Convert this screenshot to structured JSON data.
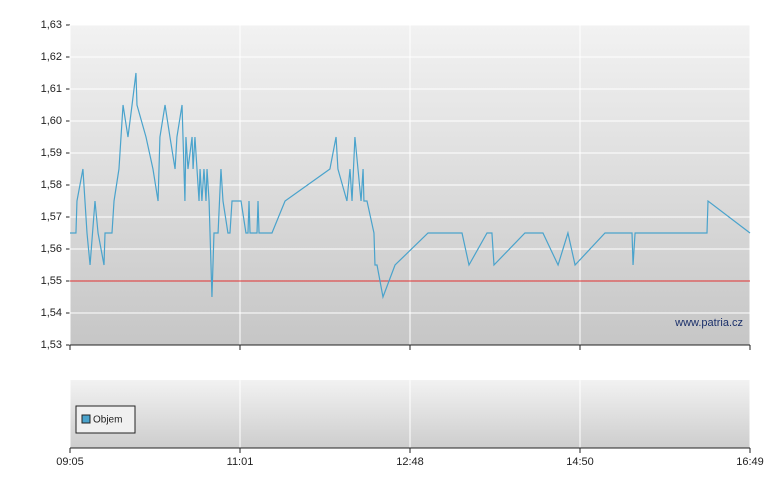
{
  "chart_data": {
    "type": "line",
    "x": [
      0,
      0.035,
      0.041,
      0.076,
      0.1,
      0.118,
      0.147,
      0.165,
      0.2,
      0.206,
      0.247,
      0.259,
      0.288,
      0.312,
      0.341,
      0.365,
      0.388,
      0.394,
      0.447,
      0.488,
      0.518,
      0.529,
      0.559,
      0.588,
      0.618,
      0.629,
      0.659,
      0.676,
      0.682,
      0.694,
      0.718,
      0.724,
      0.735,
      0.747,
      0.759,
      0.765,
      0.776,
      0.788,
      0.8,
      0.806,
      0.818,
      0.835,
      0.847,
      0.871,
      0.888,
      0.9,
      0.929,
      0.941,
      0.953,
      1.006,
      1.035,
      1.047,
      1.053,
      1.059,
      1.1,
      1.106,
      1.112,
      1.188,
      1.265,
      1.529,
      1.565,
      1.576,
      1.629,
      1.647,
      1.659,
      1.676,
      1.694,
      1.712,
      1.724,
      1.729,
      1.747,
      1.788,
      1.794,
      1.806,
      1.841,
      1.912,
      2.106,
      2.306,
      2.347,
      2.453,
      2.482,
      2.494,
      2.676,
      2.782,
      2.871,
      2.929,
      2.971,
      3.147,
      3.306,
      3.312,
      3.324,
      3.747,
      3.753,
      4
    ],
    "series": [
      {
        "name": "Objem",
        "color": "#4aa3cc",
        "values": [
          1.565,
          1.565,
          1.575,
          1.585,
          1.565,
          1.555,
          1.575,
          1.565,
          1.555,
          1.565,
          1.565,
          1.575,
          1.585,
          1.605,
          1.595,
          1.605,
          1.615,
          1.605,
          1.595,
          1.585,
          1.575,
          1.595,
          1.605,
          1.595,
          1.585,
          1.595,
          1.605,
          1.575,
          1.595,
          1.585,
          1.595,
          1.585,
          1.595,
          1.585,
          1.575,
          1.585,
          1.575,
          1.585,
          1.575,
          1.585,
          1.575,
          1.545,
          1.565,
          1.565,
          1.585,
          1.575,
          1.565,
          1.565,
          1.575,
          1.575,
          1.565,
          1.565,
          1.575,
          1.565,
          1.565,
          1.575,
          1.565,
          1.565,
          1.575,
          1.585,
          1.595,
          1.585,
          1.575,
          1.585,
          1.575,
          1.595,
          1.585,
          1.575,
          1.585,
          1.575,
          1.575,
          1.565,
          1.555,
          1.555,
          1.545,
          1.555,
          1.565,
          1.565,
          1.555,
          1.565,
          1.565,
          1.555,
          1.565,
          1.565,
          1.555,
          1.565,
          1.555,
          1.565,
          1.565,
          1.555,
          1.565,
          1.565,
          1.575,
          1.565
        ]
      }
    ],
    "xlim": [
      0,
      4
    ],
    "xticks": [
      {
        "value": 0,
        "label": "09:05"
      },
      {
        "value": 1,
        "label": "11:01"
      },
      {
        "value": 2,
        "label": "12:48"
      },
      {
        "value": 3,
        "label": "14:50"
      },
      {
        "value": 4,
        "label": "16:49"
      }
    ],
    "ylim": [
      1.53,
      1.63
    ],
    "yticks": [
      {
        "value": 1.53,
        "label": "1,53"
      },
      {
        "value": 1.54,
        "label": "1,54"
      },
      {
        "value": 1.55,
        "label": "1,55"
      },
      {
        "value": 1.56,
        "label": "1,56"
      },
      {
        "value": 1.57,
        "label": "1,57"
      },
      {
        "value": 1.58,
        "label": "1,58"
      },
      {
        "value": 1.59,
        "label": "1,59"
      },
      {
        "value": 1.6,
        "label": "1,60"
      },
      {
        "value": 1.61,
        "label": "1,61"
      },
      {
        "value": 1.62,
        "label": "1,62"
      },
      {
        "value": 1.63,
        "label": "1,63"
      }
    ],
    "grid": true,
    "reference_line": {
      "value": 1.55,
      "color": "#e03030"
    },
    "watermark": "www.patria.cz",
    "legend": "bottom-left"
  }
}
